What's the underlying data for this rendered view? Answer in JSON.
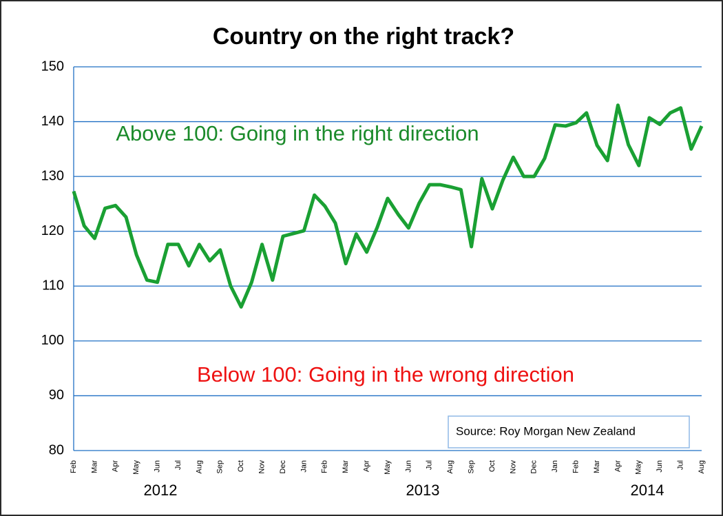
{
  "chart_data": {
    "type": "line",
    "title": "Country on the right track?",
    "categories": [
      "Feb",
      null,
      "Mar",
      null,
      "Apr",
      null,
      "May",
      null,
      "Jun",
      null,
      "Jul",
      null,
      "Aug",
      null,
      "Sep",
      null,
      "Oct",
      null,
      "Nov",
      null,
      "Dec",
      null,
      "Jan",
      null,
      "Feb",
      null,
      "Mar",
      null,
      "Apr",
      null,
      "May",
      null,
      "Jun",
      null,
      "Jul",
      null,
      "Aug",
      null,
      "Sep",
      null,
      "Oct",
      null,
      "Nov",
      null,
      "Dec",
      null,
      "Jan",
      null,
      "Feb",
      null,
      "Mar",
      null,
      "Apr",
      null,
      "May",
      null,
      "Jun",
      null,
      "Jul",
      null,
      "Aug"
    ],
    "series": [
      {
        "color": "#1aa033",
        "values": [
          127.3,
          121,
          118.7,
          124.2,
          124.7,
          122.6,
          115.7,
          111.1,
          110.7,
          117.6,
          117.6,
          113.7,
          117.6,
          114.6,
          116.6,
          110,
          106.2,
          110.7,
          117.6,
          111.1,
          119.1,
          119.6,
          120.1,
          126.6,
          124.6,
          121.5,
          114.1,
          119.5,
          116.2,
          120.7,
          126,
          123.1,
          120.6,
          125.1,
          128.5,
          128.5,
          128.1,
          127.6,
          117.2,
          129.6,
          124.1,
          129.3,
          133.5,
          130,
          130,
          133.3,
          139.4,
          139.2,
          139.8,
          141.6,
          135.7,
          132.9,
          143,
          135.8,
          132,
          140.7,
          139.5,
          141.6,
          142.5,
          135,
          139.2
        ]
      }
    ],
    "years": [
      "2012",
      "2013",
      "2014"
    ],
    "annotations": [
      {
        "text": "Above 100: Going in the right direction",
        "color": "#1a8a2a"
      },
      {
        "text": "Below 100: Going in the wrong direction",
        "color": "#ee1111"
      }
    ],
    "source": "Source: Roy Morgan New Zealand",
    "ylim": [
      80,
      150
    ],
    "yticks": [
      80,
      90,
      100,
      110,
      120,
      130,
      140,
      150
    ],
    "grid": true,
    "grid_color": "#1f6fc4"
  }
}
